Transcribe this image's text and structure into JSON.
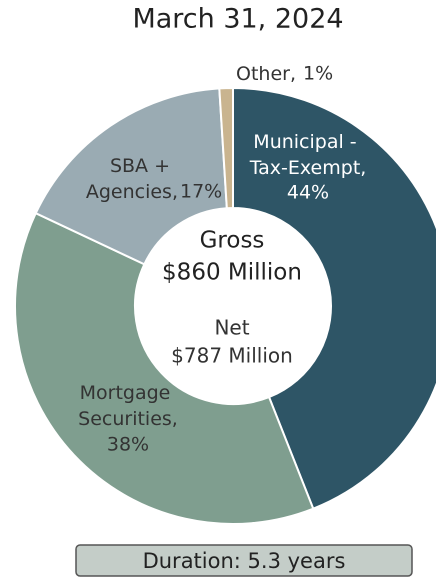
{
  "chart_data": {
    "type": "donut",
    "title": "March 31, 2024",
    "categories": [
      "Municipal - Tax-Exempt,",
      "Mortgage Securities,",
      "SBA + Agencies,",
      "Other,"
    ],
    "values": [
      44,
      38,
      17,
      1
    ],
    "value_labels": [
      "44%",
      "38%",
      "17%",
      "1%"
    ],
    "colors": [
      "#2e5566",
      "#7f9e8f",
      "#9aabb3",
      "#c9b48f"
    ],
    "center_labels": [
      "Gross",
      "$860 Million",
      "Net",
      "$787 Million"
    ],
    "footnote": "Duration: 5.3 years"
  }
}
